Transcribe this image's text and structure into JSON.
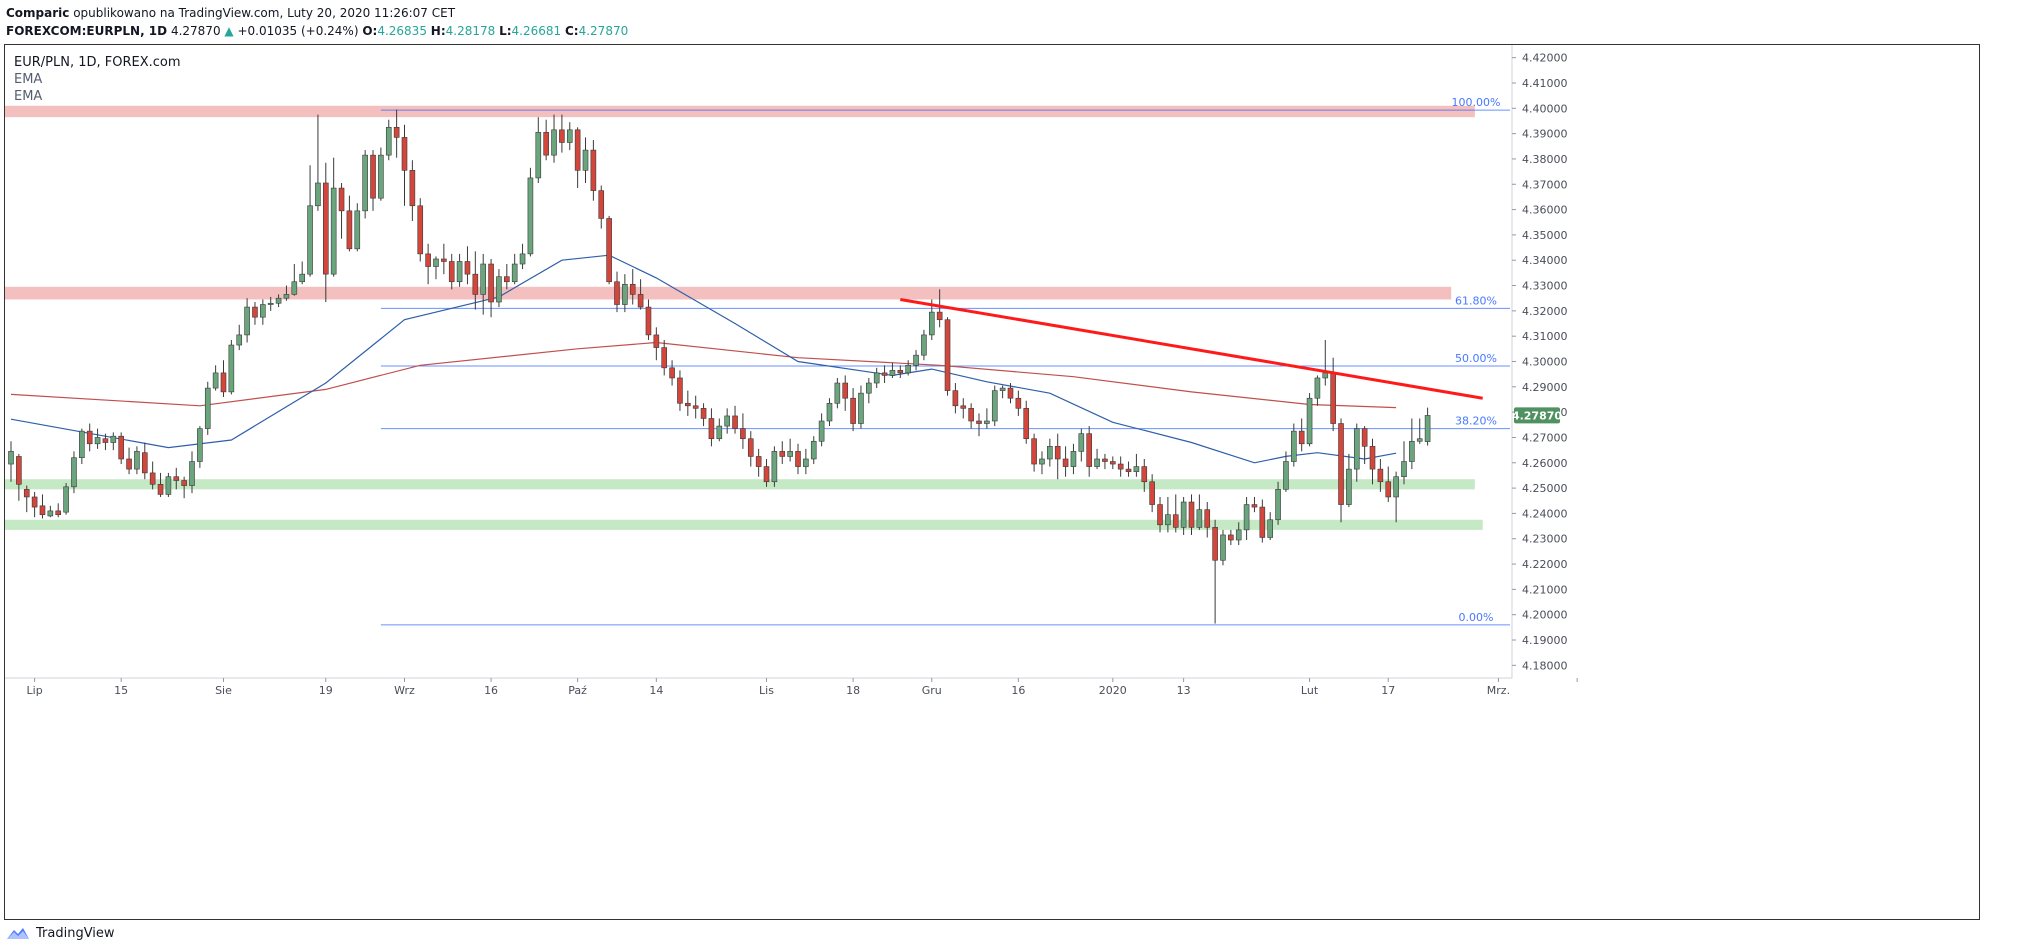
{
  "header": {
    "line1_author": "Comparic",
    "line1_rest": " opublikowano na TradingView.com, Luty 20, 2020 11:26:07 CET",
    "symbol": "FOREXCOM:EURPLN, 1D",
    "price": "4.27870",
    "change_arrow": "▲",
    "change": "+0.01035 (+0.24%)",
    "o_label": "O:",
    "o_value": "4.26835",
    "h_label": "H:",
    "h_value": "4.28178",
    "l_label": "L:",
    "l_value": "4.26681",
    "c_label": "C:",
    "c_value": "4.27870"
  },
  "legend": {
    "title": "EUR/PLN, 1D, FOREX.com",
    "ema1": "EMA",
    "ema2": "EMA"
  },
  "footer": {
    "brand": "TradingView"
  },
  "colors": {
    "up": "#6aa57d",
    "down": "#d2463c",
    "ema_fast": "#2e5faa",
    "ema_slow": "#c0504d",
    "fib": "#2962ff",
    "resistance_zone": "#f2b8b8",
    "support_zone": "#bfe6bf",
    "trendline": "#ff1a1a",
    "price_tag": "#4f9160"
  },
  "chart_data": {
    "type": "candlestick",
    "symbol": "EUR/PLN",
    "timeframe": "1D",
    "source": "FOREX.com",
    "ylim": [
      4.175,
      4.425
    ],
    "y_ticks": [
      "4.18000",
      "4.19000",
      "4.20000",
      "4.21000",
      "4.22000",
      "4.23000",
      "4.24000",
      "4.25000",
      "4.26000",
      "4.27000",
      "4.28000",
      "4.29000",
      "4.30000",
      "4.31000",
      "4.32000",
      "4.33000",
      "4.34000",
      "4.35000",
      "4.36000",
      "4.37000",
      "4.38000",
      "4.39000",
      "4.40000",
      "4.41000",
      "4.42000"
    ],
    "x_labels": [
      {
        "label": "Lip",
        "bar": 3
      },
      {
        "label": "15",
        "bar": 14
      },
      {
        "label": "Sie",
        "bar": 27
      },
      {
        "label": "19",
        "bar": 40
      },
      {
        "label": "Wrz",
        "bar": 50
      },
      {
        "label": "16",
        "bar": 61
      },
      {
        "label": "Paź",
        "bar": 72
      },
      {
        "label": "14",
        "bar": 82
      },
      {
        "label": "Lis",
        "bar": 96
      },
      {
        "label": "18",
        "bar": 107
      },
      {
        "label": "Gru",
        "bar": 117
      },
      {
        "label": "16",
        "bar": 128
      },
      {
        "label": "2020",
        "bar": 140
      },
      {
        "label": "13",
        "bar": 149
      },
      {
        "label": "Lut",
        "bar": 165
      },
      {
        "label": "17",
        "bar": 175
      },
      {
        "label": "Mrz.",
        "bar": 189
      },
      {
        "label": "",
        "bar": 199
      }
    ],
    "last_price": "4.27870",
    "candles": [
      [
        4.2595,
        4.2645,
        4.2685,
        4.2525
      ],
      [
        4.2625,
        4.2515,
        4.2635,
        4.245
      ],
      [
        4.2495,
        4.2465,
        4.251,
        4.2405
      ],
      [
        4.2465,
        4.2425,
        4.2485,
        4.2385
      ],
      [
        4.243,
        4.2395,
        4.2475,
        4.238
      ],
      [
        4.239,
        4.241,
        4.243,
        4.2385
      ],
      [
        4.241,
        4.2395,
        4.244,
        4.2385
      ],
      [
        4.2405,
        4.2505,
        4.252,
        4.2395
      ],
      [
        4.2505,
        4.262,
        4.2645,
        4.248
      ],
      [
        4.262,
        4.2725,
        4.2735,
        4.2595
      ],
      [
        4.2725,
        4.2675,
        4.2755,
        4.2645
      ],
      [
        4.2675,
        4.27,
        4.2735,
        4.2655
      ],
      [
        4.2695,
        4.268,
        4.2715,
        4.265
      ],
      [
        4.268,
        4.2705,
        4.272,
        4.265
      ],
      [
        4.2705,
        4.2615,
        4.272,
        4.2595
      ],
      [
        4.2615,
        4.2575,
        4.266,
        4.2555
      ],
      [
        4.2575,
        4.2645,
        4.2665,
        4.2555
      ],
      [
        4.264,
        4.256,
        4.268,
        4.2535
      ],
      [
        4.256,
        4.2515,
        4.2605,
        4.2495
      ],
      [
        4.2515,
        4.2475,
        4.256,
        4.2465
      ],
      [
        4.2475,
        4.2545,
        4.256,
        4.2465
      ],
      [
        4.2545,
        4.253,
        4.258,
        4.2495
      ],
      [
        4.253,
        4.251,
        4.2545,
        4.246
      ],
      [
        4.251,
        4.2605,
        4.2645,
        4.248
      ],
      [
        4.2605,
        4.2735,
        4.2745,
        4.258
      ],
      [
        4.2735,
        4.2895,
        4.292,
        4.271
      ],
      [
        4.2895,
        4.2955,
        4.2985,
        4.2885
      ],
      [
        4.2955,
        4.288,
        4.3005,
        4.286
      ],
      [
        4.288,
        4.3065,
        4.3085,
        4.287
      ],
      [
        4.3065,
        4.3105,
        4.3145,
        4.3045
      ],
      [
        4.3105,
        4.3215,
        4.325,
        4.3075
      ],
      [
        4.3215,
        4.3175,
        4.3235,
        4.3145
      ],
      [
        4.3175,
        4.3225,
        4.3245,
        4.3145
      ],
      [
        4.3225,
        4.323,
        4.3255,
        4.32
      ],
      [
        4.323,
        4.325,
        4.3265,
        4.3215
      ],
      [
        4.325,
        4.3265,
        4.33,
        4.324
      ],
      [
        4.3265,
        4.3315,
        4.3385,
        4.326
      ],
      [
        4.3315,
        4.3345,
        4.3395,
        4.3305
      ],
      [
        4.3345,
        4.3615,
        4.3775,
        4.3335
      ],
      [
        4.3615,
        4.3705,
        4.3975,
        4.3595
      ],
      [
        4.3705,
        4.3345,
        4.3785,
        4.3235
      ],
      [
        4.3345,
        4.3685,
        4.3805,
        4.3335
      ],
      [
        4.3685,
        4.3595,
        4.3705,
        4.3485
      ],
      [
        4.3595,
        4.3445,
        4.3655,
        4.3435
      ],
      [
        4.3445,
        4.3595,
        4.3625,
        4.3435
      ],
      [
        4.3595,
        4.3815,
        4.3835,
        4.3565
      ],
      [
        4.3815,
        4.3645,
        4.3835,
        4.3595
      ],
      [
        4.3645,
        4.3815,
        4.3845,
        4.3635
      ],
      [
        4.3815,
        4.3925,
        4.3955,
        4.3795
      ],
      [
        4.3925,
        4.3885,
        4.3995,
        4.3805
      ],
      [
        4.3885,
        4.3755,
        4.3935,
        4.3615
      ],
      [
        4.3755,
        4.3615,
        4.3795,
        4.3555
      ],
      [
        4.3615,
        4.3425,
        4.3645,
        4.3395
      ],
      [
        4.3425,
        4.3375,
        4.3465,
        4.3305
      ],
      [
        4.3375,
        4.3405,
        4.3415,
        4.3325
      ],
      [
        4.3405,
        4.3395,
        4.3465,
        4.3345
      ],
      [
        4.3395,
        4.3315,
        4.3425,
        4.3285
      ],
      [
        4.3315,
        4.3395,
        4.3425,
        4.3295
      ],
      [
        4.3395,
        4.3345,
        4.3455,
        4.3305
      ],
      [
        4.3345,
        4.3265,
        4.3435,
        4.3205
      ],
      [
        4.3265,
        4.3385,
        4.3425,
        4.3185
      ],
      [
        4.3385,
        4.3235,
        4.3405,
        4.3175
      ],
      [
        4.3235,
        4.3335,
        4.3365,
        4.3215
      ],
      [
        4.3335,
        4.3315,
        4.3385,
        4.3285
      ],
      [
        4.3315,
        4.3385,
        4.3425,
        4.3305
      ],
      [
        4.3385,
        4.3425,
        4.3465,
        4.3365
      ],
      [
        4.3425,
        4.3725,
        4.3765,
        4.3415
      ],
      [
        4.3725,
        4.3905,
        4.3965,
        4.3705
      ],
      [
        4.3905,
        4.3815,
        4.3955,
        4.3795
      ],
      [
        4.3815,
        4.3915,
        4.3975,
        4.3785
      ],
      [
        4.3915,
        4.3865,
        4.3975,
        4.3825
      ],
      [
        4.3865,
        4.3915,
        4.3945,
        4.3835
      ],
      [
        4.3915,
        4.3755,
        4.3925,
        4.3685
      ],
      [
        4.3755,
        4.3835,
        4.3885,
        4.3705
      ],
      [
        4.3835,
        4.3675,
        4.3875,
        4.3635
      ],
      [
        4.3675,
        4.3565,
        4.3695,
        4.3525
      ],
      [
        4.3565,
        4.3315,
        4.3575,
        4.3305
      ],
      [
        4.3315,
        4.3225,
        4.3355,
        4.3195
      ],
      [
        4.3225,
        4.3305,
        4.3345,
        4.3195
      ],
      [
        4.3305,
        4.3265,
        4.3365,
        4.3225
      ],
      [
        4.3265,
        4.3215,
        4.3325,
        4.3205
      ],
      [
        4.3215,
        4.3105,
        4.3245,
        4.3085
      ],
      [
        4.3105,
        4.3055,
        4.3135,
        4.3005
      ],
      [
        4.3055,
        4.2975,
        4.3085,
        4.2945
      ],
      [
        4.2975,
        4.2935,
        4.3005,
        4.2905
      ],
      [
        4.2935,
        4.2835,
        4.2965,
        4.2805
      ],
      [
        4.2835,
        4.2825,
        4.2885,
        4.2785
      ],
      [
        4.2825,
        4.2815,
        4.2865,
        4.2775
      ],
      [
        4.2815,
        4.2775,
        4.2835,
        4.2745
      ],
      [
        4.2775,
        4.2695,
        4.2815,
        4.2665
      ],
      [
        4.2695,
        4.2745,
        4.2775,
        4.2685
      ],
      [
        4.2745,
        4.2785,
        4.2815,
        4.2715
      ],
      [
        4.2785,
        4.2735,
        4.2825,
        4.2715
      ],
      [
        4.2735,
        4.2695,
        4.2795,
        4.2655
      ],
      [
        4.2695,
        4.2625,
        4.2725,
        4.2585
      ],
      [
        4.2625,
        4.2585,
        4.2655,
        4.2545
      ],
      [
        4.2585,
        4.2525,
        4.2615,
        4.2505
      ],
      [
        4.2525,
        4.2645,
        4.2665,
        4.2505
      ],
      [
        4.2645,
        4.2625,
        4.2685,
        4.2595
      ],
      [
        4.2625,
        4.2645,
        4.2695,
        4.2605
      ],
      [
        4.2645,
        4.2585,
        4.2675,
        4.2555
      ],
      [
        4.2585,
        4.2615,
        4.2655,
        4.2555
      ],
      [
        4.2615,
        4.2685,
        4.2705,
        4.2595
      ],
      [
        4.2685,
        4.2765,
        4.2795,
        4.2665
      ],
      [
        4.2765,
        4.2835,
        4.2855,
        4.2745
      ],
      [
        4.2835,
        4.2915,
        4.2935,
        4.2815
      ],
      [
        4.2915,
        4.2855,
        4.2945,
        4.2805
      ],
      [
        4.2855,
        4.2755,
        4.2895,
        4.2725
      ],
      [
        4.2755,
        4.2875,
        4.2905,
        4.2735
      ],
      [
        4.2875,
        4.2915,
        4.2935,
        4.2835
      ],
      [
        4.2915,
        4.2955,
        4.2975,
        4.2895
      ],
      [
        4.2955,
        4.2945,
        4.2985,
        4.2915
      ],
      [
        4.2945,
        4.2965,
        4.2995,
        4.2935
      ],
      [
        4.2965,
        4.2955,
        4.2985,
        4.2935
      ],
      [
        4.2955,
        4.2985,
        4.3005,
        4.2945
      ],
      [
        4.2985,
        4.3025,
        4.3045,
        4.2965
      ],
      [
        4.3025,
        4.3105,
        4.3125,
        4.3005
      ],
      [
        4.3105,
        4.3195,
        4.3245,
        4.3085
      ],
      [
        4.3195,
        4.3165,
        4.3285,
        4.3135
      ],
      [
        4.3165,
        4.2885,
        4.3175,
        4.2865
      ],
      [
        4.2885,
        4.2825,
        4.2915,
        4.2795
      ],
      [
        4.2825,
        4.2815,
        4.2855,
        4.2775
      ],
      [
        4.2815,
        4.2765,
        4.2835,
        4.2735
      ],
      [
        4.2765,
        4.2755,
        4.2795,
        4.2705
      ],
      [
        4.2755,
        4.2765,
        4.2815,
        4.2735
      ],
      [
        4.2765,
        4.2885,
        4.2905,
        4.2745
      ],
      [
        4.2885,
        4.2895,
        4.2905,
        4.2855
      ],
      [
        4.2895,
        4.2855,
        4.2915,
        4.2835
      ],
      [
        4.2855,
        4.2815,
        4.2885,
        4.2785
      ],
      [
        4.2815,
        4.2695,
        4.2845,
        4.2675
      ],
      [
        4.2695,
        4.2595,
        4.2715,
        4.2565
      ],
      [
        4.2595,
        4.2615,
        4.2645,
        4.2555
      ],
      [
        4.2615,
        4.2665,
        4.2695,
        4.2585
      ],
      [
        4.2665,
        4.2615,
        4.2715,
        4.2535
      ],
      [
        4.2615,
        4.2585,
        4.2665,
        4.2545
      ],
      [
        4.2585,
        4.2645,
        4.2675,
        4.2555
      ],
      [
        4.2645,
        4.2715,
        4.2735,
        4.2605
      ],
      [
        4.2715,
        4.2585,
        4.2745,
        4.2545
      ],
      [
        4.2585,
        4.2615,
        4.2655,
        4.2575
      ],
      [
        4.2615,
        4.2605,
        4.2635,
        4.2575
      ],
      [
        4.2605,
        4.2595,
        4.2625,
        4.2575
      ],
      [
        4.2595,
        4.2575,
        4.2625,
        4.2545
      ],
      [
        4.2575,
        4.2565,
        4.2605,
        4.2545
      ],
      [
        4.2565,
        4.2585,
        4.2635,
        4.2545
      ],
      [
        4.2585,
        4.2525,
        4.2615,
        4.2485
      ],
      [
        4.2525,
        4.2435,
        4.2555,
        4.2405
      ],
      [
        4.2435,
        4.2355,
        4.2465,
        4.2325
      ],
      [
        4.2355,
        4.2395,
        4.2465,
        4.2325
      ],
      [
        4.2395,
        4.2345,
        4.2475,
        4.2325
      ],
      [
        4.2345,
        4.2445,
        4.2465,
        4.2315
      ],
      [
        4.2445,
        4.2345,
        4.2475,
        4.2315
      ],
      [
        4.2345,
        4.2415,
        4.2475,
        4.2335
      ],
      [
        4.2415,
        4.2345,
        4.2445,
        4.2305
      ],
      [
        4.2345,
        4.2215,
        4.2375,
        4.1965
      ],
      [
        4.2215,
        4.2315,
        4.2335,
        4.2195
      ],
      [
        4.2315,
        4.2295,
        4.2335,
        4.2275
      ],
      [
        4.2295,
        4.2335,
        4.2365,
        4.2275
      ],
      [
        4.2335,
        4.2435,
        4.2465,
        4.2295
      ],
      [
        4.2435,
        4.2425,
        4.2465,
        4.2405
      ],
      [
        4.2425,
        4.2305,
        4.2455,
        4.2285
      ],
      [
        4.2305,
        4.2375,
        4.2405,
        4.2295
      ],
      [
        4.2375,
        4.2495,
        4.2525,
        4.2355
      ],
      [
        4.2495,
        4.2605,
        4.2645,
        4.2485
      ],
      [
        4.2605,
        4.2725,
        4.2755,
        4.2585
      ],
      [
        4.2725,
        4.2675,
        4.2775,
        4.2645
      ],
      [
        4.2675,
        4.2855,
        4.2875,
        4.2665
      ],
      [
        4.2855,
        4.2935,
        4.2945,
        4.2825
      ],
      [
        4.2935,
        4.2955,
        4.3085,
        4.2905
      ],
      [
        4.2955,
        4.2755,
        4.3015,
        4.2725
      ],
      [
        4.2755,
        4.2435,
        4.2775,
        4.2365
      ],
      [
        4.2435,
        4.2575,
        4.2635,
        4.2425
      ],
      [
        4.2575,
        4.2735,
        4.2755,
        4.2525
      ],
      [
        4.2735,
        4.2665,
        4.2745,
        4.2595
      ],
      [
        4.2665,
        4.2575,
        4.2695,
        4.2515
      ],
      [
        4.2575,
        4.2525,
        4.2615,
        4.2485
      ],
      [
        4.2525,
        4.2465,
        4.2585,
        4.2445
      ],
      [
        4.2465,
        4.2545,
        4.2565,
        4.2365
      ],
      [
        4.2545,
        4.2605,
        4.2685,
        4.2515
      ],
      [
        4.2605,
        4.2685,
        4.2775,
        4.2575
      ],
      [
        4.2685,
        4.2695,
        4.2775,
        4.2675
      ],
      [
        4.26835,
        4.2787,
        4.28178,
        4.26681
      ]
    ],
    "ema_fast": [
      [
        0,
        4.2772
      ],
      [
        20,
        4.266
      ],
      [
        28,
        4.269
      ],
      [
        40,
        4.2915
      ],
      [
        50,
        4.3165
      ],
      [
        62,
        4.3255
      ],
      [
        70,
        4.34
      ],
      [
        76,
        4.342
      ],
      [
        82,
        4.333
      ],
      [
        92,
        4.315
      ],
      [
        100,
        4.3
      ],
      [
        112,
        4.2945
      ],
      [
        117,
        4.297
      ],
      [
        124,
        4.292
      ],
      [
        132,
        4.2875
      ],
      [
        140,
        4.276
      ],
      [
        150,
        4.268
      ],
      [
        158,
        4.26
      ],
      [
        162,
        4.2625
      ],
      [
        166,
        4.264
      ],
      [
        172,
        4.2615
      ],
      [
        176,
        4.2638
      ]
    ],
    "ema_slow": [
      [
        0,
        4.287
      ],
      [
        24,
        4.2825
      ],
      [
        40,
        4.289
      ],
      [
        52,
        4.2985
      ],
      [
        72,
        4.305
      ],
      [
        82,
        4.3075
      ],
      [
        100,
        4.3015
      ],
      [
        118,
        4.2985
      ],
      [
        135,
        4.294
      ],
      [
        150,
        4.288
      ],
      [
        165,
        4.283
      ],
      [
        176,
        4.2818
      ]
    ],
    "resistance_zones": [
      {
        "y1": 4.3965,
        "y2": 4.401,
        "x_end": 186
      },
      {
        "y1": 4.3245,
        "y2": 4.3295,
        "x_end": 183
      }
    ],
    "support_zones": [
      {
        "y1": 4.2495,
        "y2": 4.2535,
        "x_end": 186
      },
      {
        "y1": 4.2335,
        "y2": 4.2375,
        "x_end": 187
      }
    ],
    "fib_levels": [
      {
        "label": "100.00%",
        "value": 4.3993
      },
      {
        "label": "61.80%",
        "value": 4.321
      },
      {
        "label": "50.00%",
        "value": 4.2982
      },
      {
        "label": "38.20%",
        "value": 4.2735
      },
      {
        "label": "0.00%",
        "value": 4.196
      }
    ],
    "fib_x_start": 47,
    "trendline": [
      [
        113,
        4.3245
      ],
      [
        187,
        4.2855
      ]
    ]
  }
}
